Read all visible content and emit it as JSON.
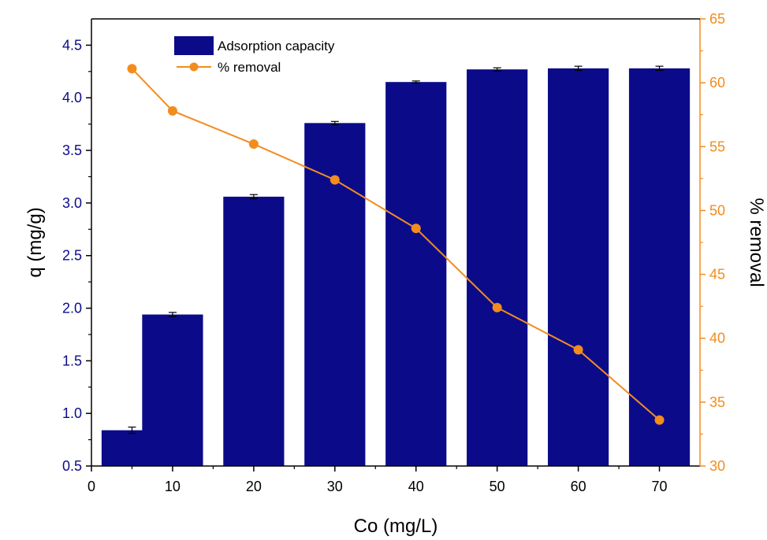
{
  "chart_data": {
    "type": "bar",
    "xlabel": "Co (mg/L)",
    "ylabel": "q (mg/g)",
    "y2label": "% removal",
    "xlim": [
      0,
      75
    ],
    "ylim": [
      0.5,
      4.75
    ],
    "y2lim": [
      30,
      65
    ],
    "xticks": [
      0,
      10,
      20,
      30,
      40,
      50,
      60,
      70
    ],
    "yticks": [
      0.5,
      1.0,
      1.5,
      2.0,
      2.5,
      3.0,
      3.5,
      4.0,
      4.5
    ],
    "y2ticks": [
      30,
      35,
      40,
      45,
      50,
      55,
      60,
      65
    ],
    "ytick_labels": [
      "0.5",
      "1.0",
      "1.5",
      "2.0",
      "2.5",
      "3.0",
      "3.5",
      "4.0",
      "4.5"
    ],
    "series": [
      {
        "name": "Adsorption capacity",
        "type": "bar",
        "axis": "left",
        "x": [
          5,
          10,
          20,
          30,
          40,
          50,
          60,
          70
        ],
        "values": [
          0.84,
          1.94,
          3.06,
          3.76,
          4.15,
          4.27,
          4.28,
          4.28
        ],
        "errors": [
          0.03,
          0.02,
          0.02,
          0.015,
          0.01,
          0.015,
          0.02,
          0.02
        ],
        "color": "#0b0b8a"
      },
      {
        "name": "% removal",
        "type": "line",
        "axis": "right",
        "x": [
          5,
          10,
          20,
          30,
          40,
          50,
          60,
          70
        ],
        "values": [
          61.1,
          57.8,
          55.2,
          52.4,
          48.6,
          42.4,
          39.1,
          33.6
        ],
        "color": "#f28c1e"
      }
    ],
    "legend_position": "top-left",
    "colors": {
      "left_axis": "#0b0b8a",
      "right_axis": "#f28c1e",
      "axis_line": "#000000"
    }
  }
}
